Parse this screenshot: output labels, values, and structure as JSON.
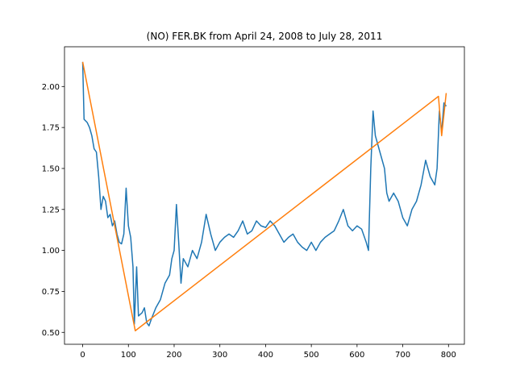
{
  "chart_data": {
    "type": "line",
    "title": "(NO) FER.BK from April 24, 2008 to July 28, 2011",
    "series": [
      {
        "color": "#1f77b4",
        "x": [
          0,
          3,
          10,
          15,
          20,
          25,
          30,
          35,
          40,
          45,
          50,
          55,
          60,
          65,
          70,
          75,
          80,
          85,
          90,
          95,
          100,
          105,
          110,
          113,
          118,
          122,
          130,
          135,
          140,
          145,
          150,
          160,
          170,
          180,
          190,
          195,
          200,
          205,
          210,
          215,
          220,
          230,
          240,
          250,
          260,
          270,
          280,
          290,
          300,
          310,
          320,
          330,
          340,
          350,
          360,
          370,
          380,
          390,
          400,
          410,
          420,
          430,
          440,
          450,
          460,
          470,
          480,
          490,
          500,
          510,
          520,
          530,
          540,
          550,
          560,
          570,
          580,
          590,
          600,
          610,
          620,
          625,
          630,
          635,
          640,
          645,
          650,
          660,
          665,
          670,
          680,
          690,
          700,
          710,
          720,
          730,
          740,
          750,
          760,
          770,
          775,
          780,
          785,
          790,
          795
        ],
        "values": [
          2.15,
          1.8,
          1.78,
          1.75,
          1.7,
          1.62,
          1.6,
          1.45,
          1.25,
          1.33,
          1.3,
          1.2,
          1.22,
          1.15,
          1.18,
          1.1,
          1.05,
          1.04,
          1.1,
          1.38,
          1.15,
          1.08,
          0.9,
          0.55,
          0.9,
          0.6,
          0.62,
          0.65,
          0.56,
          0.54,
          0.58,
          0.65,
          0.7,
          0.8,
          0.85,
          0.95,
          1.0,
          1.28,
          1.05,
          0.8,
          0.95,
          0.9,
          1.0,
          0.95,
          1.05,
          1.22,
          1.1,
          1.0,
          1.05,
          1.08,
          1.1,
          1.08,
          1.12,
          1.18,
          1.1,
          1.12,
          1.18,
          1.15,
          1.14,
          1.18,
          1.15,
          1.1,
          1.05,
          1.08,
          1.1,
          1.05,
          1.02,
          1.0,
          1.05,
          1.0,
          1.05,
          1.08,
          1.1,
          1.12,
          1.18,
          1.25,
          1.15,
          1.12,
          1.15,
          1.13,
          1.05,
          1.0,
          1.5,
          1.85,
          1.7,
          1.65,
          1.6,
          1.5,
          1.35,
          1.3,
          1.35,
          1.3,
          1.2,
          1.15,
          1.25,
          1.3,
          1.4,
          1.55,
          1.45,
          1.4,
          1.5,
          1.85,
          1.72,
          1.9,
          1.88
        ]
      },
      {
        "color": "#ff7f0e",
        "x": [
          0,
          115,
          778,
          785,
          795
        ],
        "values": [
          2.15,
          0.51,
          1.94,
          1.7,
          1.96
        ]
      }
    ],
    "xlim": [
      -39.75,
      834.75
    ],
    "xticks": [
      0,
      100,
      200,
      300,
      400,
      500,
      600,
      700,
      800
    ],
    "ylim": [
      0.4275,
      2.2425
    ],
    "yticks": [
      {
        "value": 0.5,
        "label": "0.50"
      },
      {
        "value": 0.75,
        "label": "0.75"
      },
      {
        "value": 1.0,
        "label": "1.00"
      },
      {
        "value": 1.25,
        "label": "1.25"
      },
      {
        "value": 1.5,
        "label": "1.50"
      },
      {
        "value": 1.75,
        "label": "1.75"
      },
      {
        "value": 2.0,
        "label": "2.00"
      }
    ],
    "grid": false
  }
}
